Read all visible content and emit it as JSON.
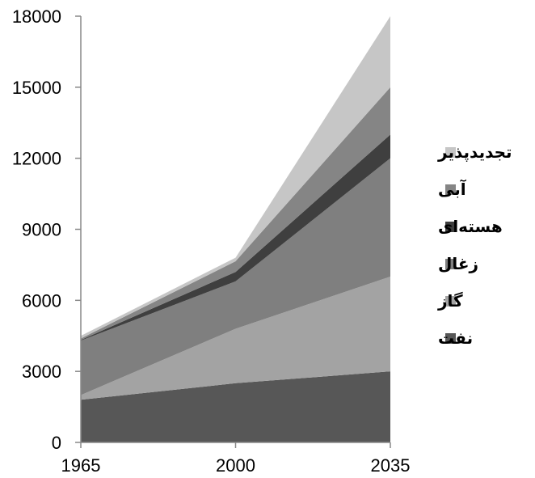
{
  "chart_data": {
    "type": "area",
    "stacked": true,
    "x": [
      1965,
      2000,
      2035
    ],
    "xtick_labels": [
      "1965",
      "2000",
      "2035"
    ],
    "ylim": [
      0,
      18000
    ],
    "yticks": [
      0,
      3000,
      6000,
      9000,
      12000,
      15000,
      18000
    ],
    "ytick_labels": [
      "0",
      "3000",
      "6000",
      "9000",
      "12000",
      "15000",
      "18000"
    ],
    "title": "",
    "xlabel": "",
    "ylabel": "",
    "grid": false,
    "legend_position": "right",
    "series": [
      {
        "name": "نفت",
        "values": [
          1800,
          2500,
          3000
        ],
        "color": "#575757"
      },
      {
        "name": "گاز",
        "values": [
          200,
          2300,
          4000
        ],
        "color": "#a3a3a3"
      },
      {
        "name": "زغال",
        "values": [
          2300,
          2000,
          5000
        ],
        "color": "#7f7f7f"
      },
      {
        "name": "هسته‌ای",
        "values": [
          30,
          400,
          1000
        ],
        "color": "#3f3f3f"
      },
      {
        "name": "آبی",
        "values": [
          60,
          450,
          2000
        ],
        "color": "#858585"
      },
      {
        "name": "تجدیدپذیر",
        "values": [
          110,
          150,
          3000
        ],
        "color": "#c6c6c6"
      }
    ]
  }
}
